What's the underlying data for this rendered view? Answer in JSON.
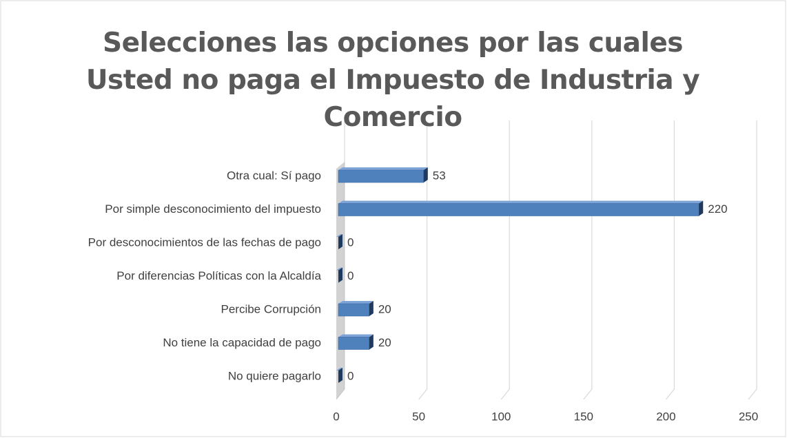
{
  "chart_data": {
    "type": "bar",
    "orientation": "horizontal",
    "title": "Selecciones las opciones por las cuales Usted no paga el Impuesto de Industria y Comercio",
    "categories": [
      "Otra cual: Sí pago",
      "Por simple desconocimiento del impuesto",
      "Por desconocimientos de las fechas de pago",
      "Por diferencias Políticas con la Alcaldía ",
      "Percibe Corrupción",
      "No tiene la capacidad de pago",
      "No quiere pagarlo"
    ],
    "values": [
      53,
      220,
      0,
      0,
      20,
      20,
      0
    ],
    "color": "#4f81bd",
    "xlim": [
      0,
      250
    ],
    "xticks": [
      0,
      50,
      100,
      150,
      200,
      250
    ],
    "grid": true
  }
}
